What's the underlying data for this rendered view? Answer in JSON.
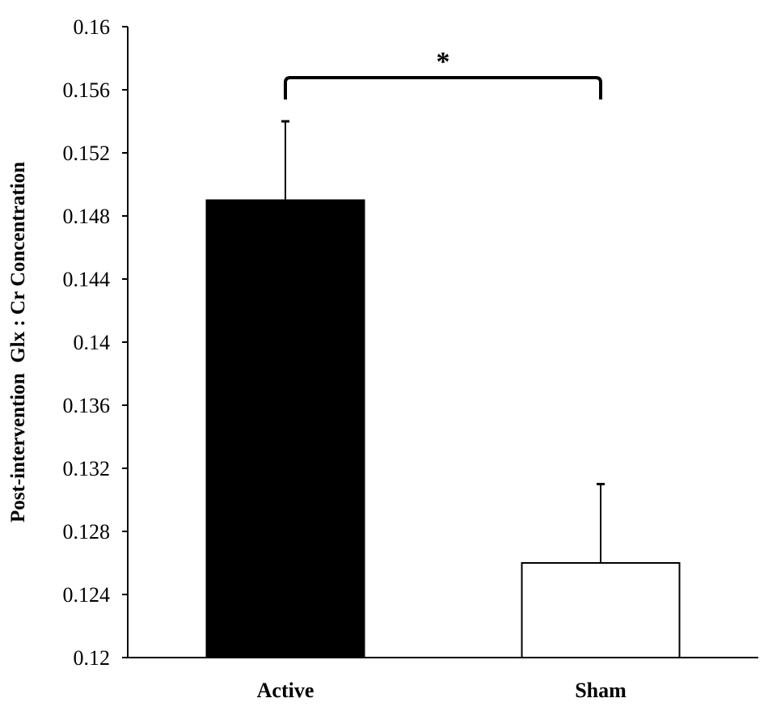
{
  "chart_data": {
    "type": "bar",
    "categories": [
      "Active",
      "Sham"
    ],
    "values": [
      0.149,
      0.126
    ],
    "error_upper": [
      0.154,
      0.131
    ],
    "bar_colors": [
      "#000000",
      "#ffffff"
    ],
    "bar_edge_color": "#000000",
    "ylabel": "Post-intervention  Glx : Cr Concentration",
    "xlabel": "",
    "ylim": [
      0.12,
      0.16
    ],
    "yticks": [
      "0.12",
      "0.124",
      "0.128",
      "0.132",
      "0.136",
      "0.14",
      "0.144",
      "0.148",
      "0.152",
      "0.156",
      "0.16"
    ],
    "significance": {
      "marker": "*",
      "between": [
        "Active",
        "Sham"
      ]
    },
    "grid": false,
    "legend": "none"
  }
}
